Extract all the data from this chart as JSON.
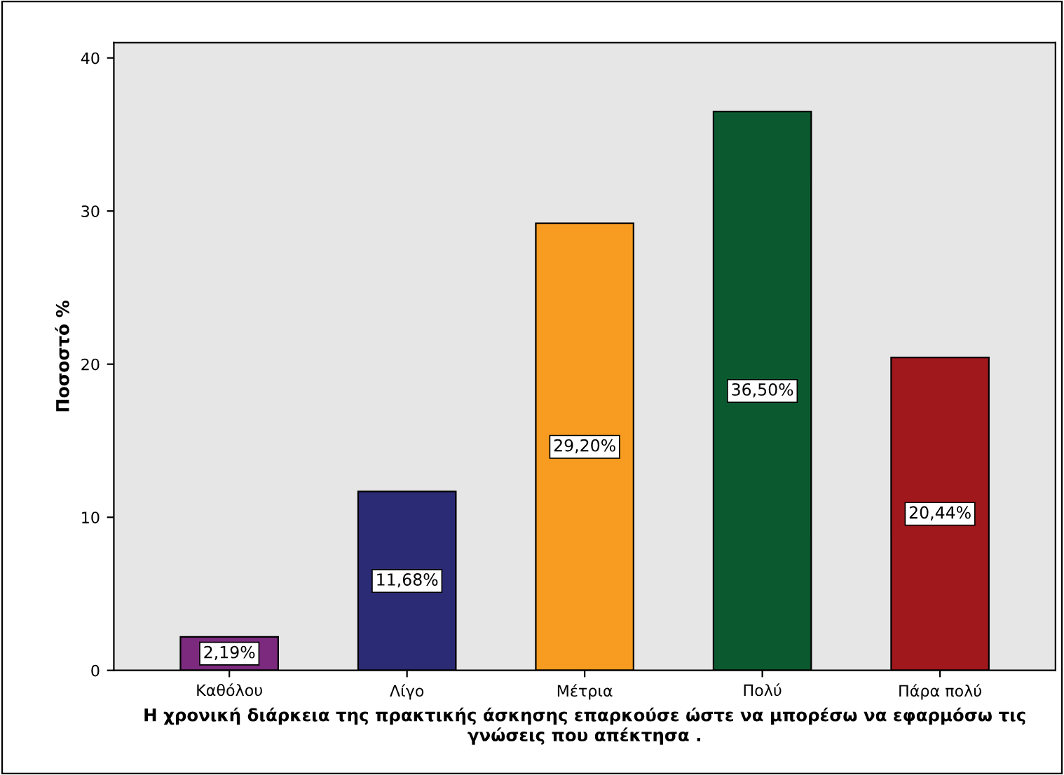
{
  "chart_data": {
    "type": "bar",
    "ylabel": "Ποσοστό %",
    "xlabel": "Η χρονική διάρκεια της πρακτικής άσκησης επαρκούσε ώστε να μπορέσω να εφαρμόσω τις γνώσεις που απέκτησα .",
    "categories": [
      "Καθόλου",
      "Λίγο",
      "Μέτρια",
      "Πολύ",
      "Πάρα πολύ"
    ],
    "values": [
      2.19,
      11.68,
      29.2,
      36.5,
      20.44
    ],
    "value_labels": [
      "2,19%",
      "11,68%",
      "29,20%",
      "36,50%",
      "20,44%"
    ],
    "colors": [
      "#7b2a7e",
      "#2b2b75",
      "#f79c20",
      "#0b5a2f",
      "#a0181c"
    ],
    "ylim": [
      0,
      41
    ],
    "yticks": [
      0,
      10,
      20,
      30,
      40
    ],
    "grid": false,
    "legend": false
  }
}
